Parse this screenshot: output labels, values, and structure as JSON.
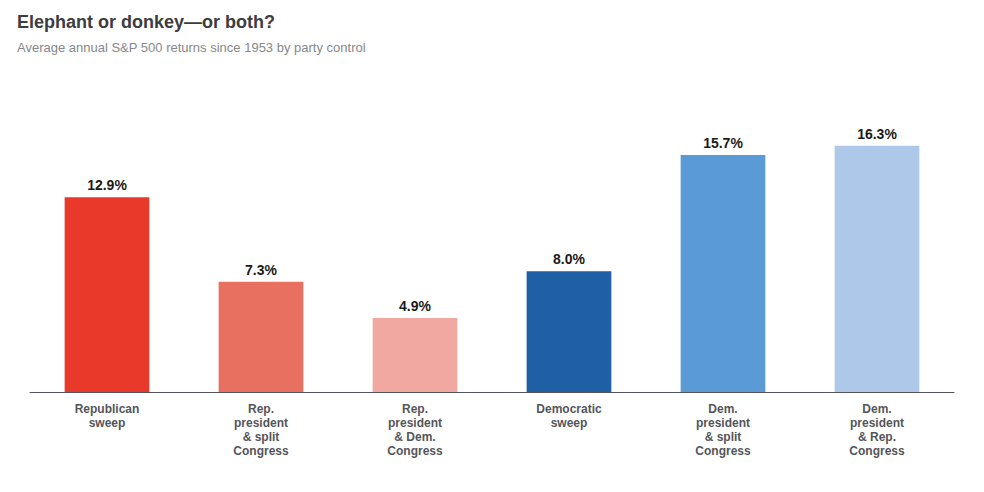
{
  "chart_data": {
    "type": "bar",
    "title": "Elephant or donkey—or both?",
    "subtitle": "Average annual S&P 500 returns since 1953 by party control",
    "categories": [
      "Republican\nsweep",
      "Rep.\npresident\n& split\nCongress",
      "Rep.\npresident\n& Dem.\nCongress",
      "Democratic\nsweep",
      "Dem.\npresident\n& split\nCongress",
      "Dem.\npresident\n& Rep.\nCongress"
    ],
    "values": [
      12.9,
      7.3,
      4.9,
      8.0,
      15.7,
      16.3
    ],
    "value_labels": [
      "12.9%",
      "7.3%",
      "4.9%",
      "8.0%",
      "15.7%",
      "16.3%"
    ],
    "colors": [
      "#e8392a",
      "#e87060",
      "#f0a8a0",
      "#1f5fa6",
      "#5b9bd5",
      "#adc8e8"
    ],
    "ylim": [
      0,
      20
    ],
    "grid": false,
    "data_labels": true,
    "tick_labels": "x"
  }
}
